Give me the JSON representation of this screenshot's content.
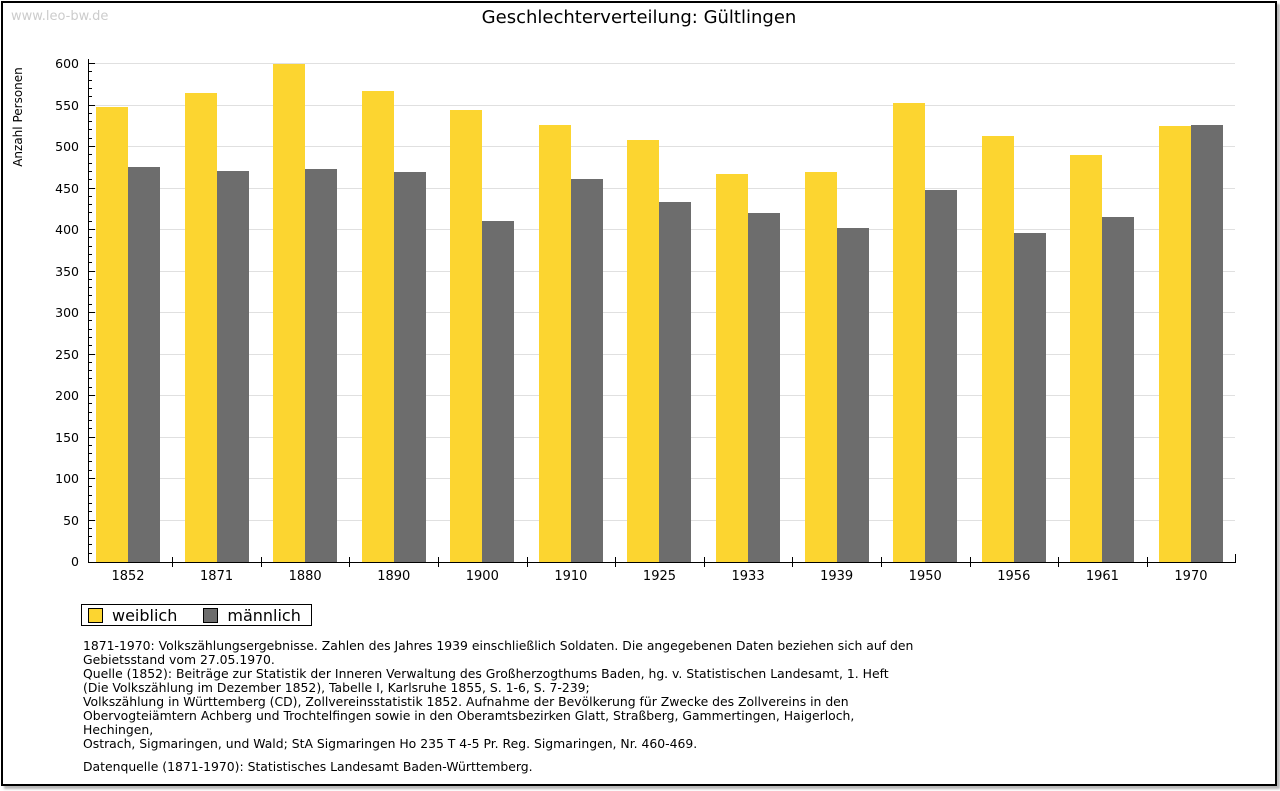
{
  "watermark": "www.leo-bw.de",
  "title": "Geschlechterverteilung: Gültlingen",
  "chart_data": {
    "type": "bar",
    "title": "Geschlechterverteilung: Gültlingen",
    "xlabel": "",
    "ylabel": "Anzahl Personen",
    "ylim": [
      0,
      600
    ],
    "y_major_step": 50,
    "y_minor_step": 10,
    "grid": true,
    "legend_position": "bottom-left",
    "categories": [
      "1852",
      "1871",
      "1880",
      "1890",
      "1900",
      "1910",
      "1925",
      "1933",
      "1939",
      "1950",
      "1956",
      "1961",
      "1970"
    ],
    "series": [
      {
        "name": "weiblich",
        "color": "#FCD530",
        "values": [
          548,
          565,
          600,
          568,
          545,
          527,
          508,
          467,
          470,
          553,
          513,
          490,
          525
        ]
      },
      {
        "name": "männlich",
        "color": "#6D6D6D",
        "values": [
          476,
          471,
          473,
          470,
          411,
          461,
          434,
          421,
          403,
          448,
          397,
          416,
          526
        ]
      }
    ]
  },
  "footer": {
    "lines": [
      "1871-1970: Volkszählungsergebnisse. Zahlen des Jahres 1939 einschließlich Soldaten. Die angegebenen Daten beziehen sich auf den",
      "Gebietsstand vom 27.05.1970.",
      "Quelle (1852): Beiträge zur Statistik der Inneren Verwaltung des Großherzogthums Baden, hg. v. Statistischen Landesamt, 1. Heft",
      "(Die Volkszählung im Dezember 1852), Tabelle I, Karlsruhe 1855, S. 1-6, S. 7-239;",
      "Volkszählung in Württemberg (CD), Zollvereinsstatistik 1852. Aufnahme der Bevölkerung für Zwecke des Zollvereins in den",
      "Obervogteiämtern Achberg und Trochtelfingen sowie in den Oberamtsbezirken Glatt, Straßberg, Gammertingen, Haigerloch, Hechingen,",
      "Ostrach, Sigmaringen, und Wald; StA Sigmaringen Ho 235 T 4-5 Pr. Reg. Sigmaringen, Nr. 460-469."
    ],
    "datasource": "Datenquelle (1871-1970): Statistisches Landesamt Baden-Württemberg."
  },
  "colors": {
    "female_bar": "#FCD530",
    "male_bar": "#6D6D6D",
    "gridline": "#E0E0E0",
    "watermark": "#CCCCCC",
    "axis": "#000000"
  }
}
